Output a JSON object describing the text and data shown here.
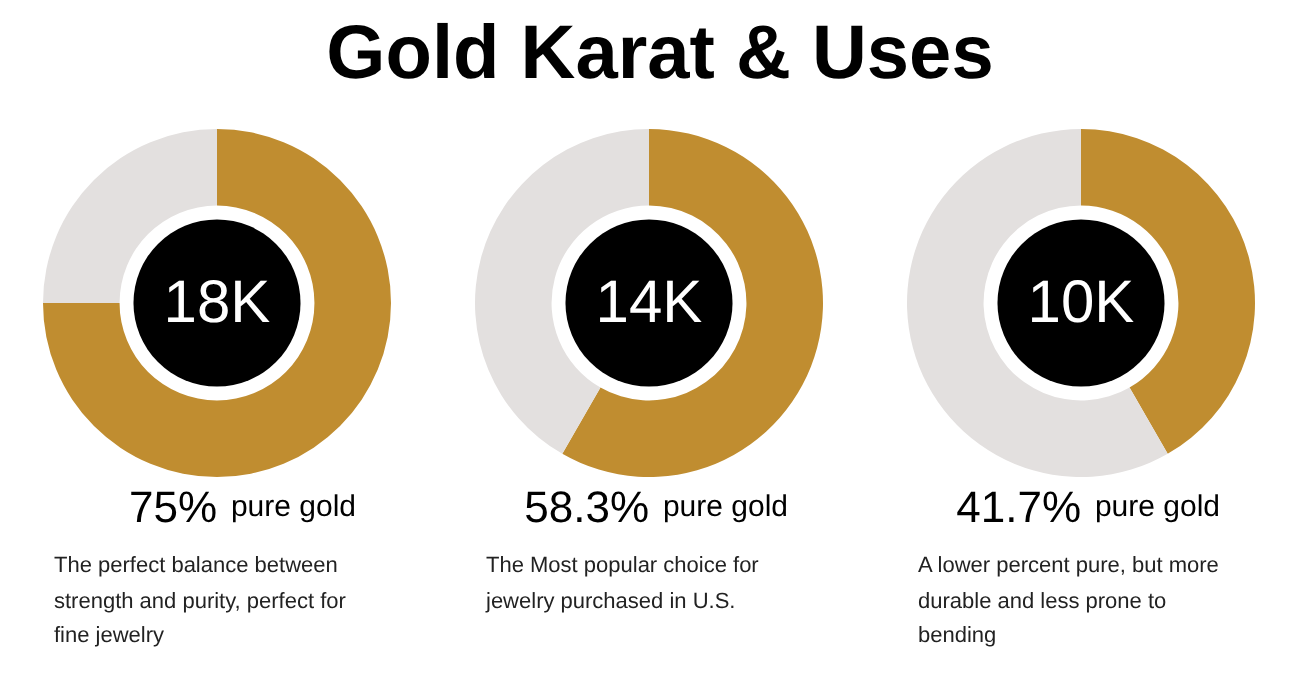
{
  "chart_data": [
    {
      "type": "other",
      "title": "Gold Karat & Uses"
    },
    {
      "type": "donut",
      "categories": [
        null,
        null
      ],
      "values": [
        75,
        25
      ],
      "colors": [
        "#c08d30",
        "#e3e0df"
      ],
      "annotations": [
        "18K",
        "The perfect balance between strength and purity, perfect for fine jewelry",
        "pure gold",
        "75%"
      ]
    },
    {
      "type": "donut",
      "categories": [
        null,
        null
      ],
      "values": [
        58.3,
        41.7
      ],
      "colors": [
        "#c08d30",
        "#e3e0df"
      ],
      "annotations": [
        "14K",
        "The Most popular choice for jewelry purchased in U.S.",
        "pure gold",
        "58.3%"
      ]
    },
    {
      "type": "donut",
      "categories": [
        null,
        null
      ],
      "values": [
        41.7,
        58.3
      ],
      "colors": [
        "#c08d30",
        "#e3e0df"
      ],
      "annotations": [
        "10K",
        "A lower percent pure, but more durable and less prone to bending",
        "pure gold",
        "41.7%"
      ]
    }
  ]
}
